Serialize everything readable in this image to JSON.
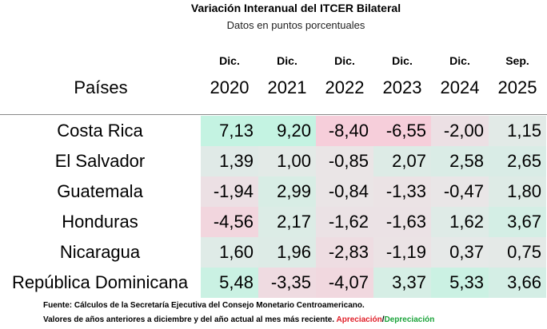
{
  "header": {
    "title": "Variación Interanual del ITCER Bilateral",
    "subtitle": "Datos en puntos porcentuales"
  },
  "table": {
    "row_header": "Países",
    "columns": [
      {
        "top": "Dic.",
        "bottom": "2020"
      },
      {
        "top": "Dic.",
        "bottom": "2021"
      },
      {
        "top": "Dic.",
        "bottom": "2022"
      },
      {
        "top": "Dic.",
        "bottom": "2023"
      },
      {
        "top": "Dic.",
        "bottom": "2024"
      },
      {
        "top": "Sep.",
        "bottom": "2025"
      }
    ],
    "rows": [
      {
        "country": "Costa Rica",
        "cells": [
          "7,13",
          "9,20",
          "-8,40",
          "-6,55",
          "-2,00",
          "1,15"
        ]
      },
      {
        "country": "El Salvador",
        "cells": [
          "1,39",
          "1,00",
          "-0,85",
          "2,07",
          "2,58",
          "2,65"
        ]
      },
      {
        "country": "Guatemala",
        "cells": [
          "-1,94",
          "2,99",
          "-0,84",
          "-1,33",
          "-0,47",
          "1,80"
        ]
      },
      {
        "country": "Honduras",
        "cells": [
          "-4,56",
          "2,17",
          "-1,62",
          "-1,63",
          "1,62",
          "3,67"
        ]
      },
      {
        "country": "Nicaragua",
        "cells": [
          "1,60",
          "1,96",
          "-2,83",
          "-1,19",
          "0,37",
          "0,75"
        ]
      },
      {
        "country": "República Dominicana",
        "cells": [
          "5,48",
          "-3,35",
          "-4,07",
          "3,37",
          "5,33",
          "3,66"
        ]
      }
    ]
  },
  "footer": {
    "source": "Fuente: Cálculos de la Secretaría Ejecutiva del Consejo Monetario Centroamericano.",
    "note": "Valores de años anteriores a diciembre y del año actual al mes más reciente.",
    "appreciation": "Apreciación",
    "separator": "/",
    "depreciation": "Depreciación"
  }
}
